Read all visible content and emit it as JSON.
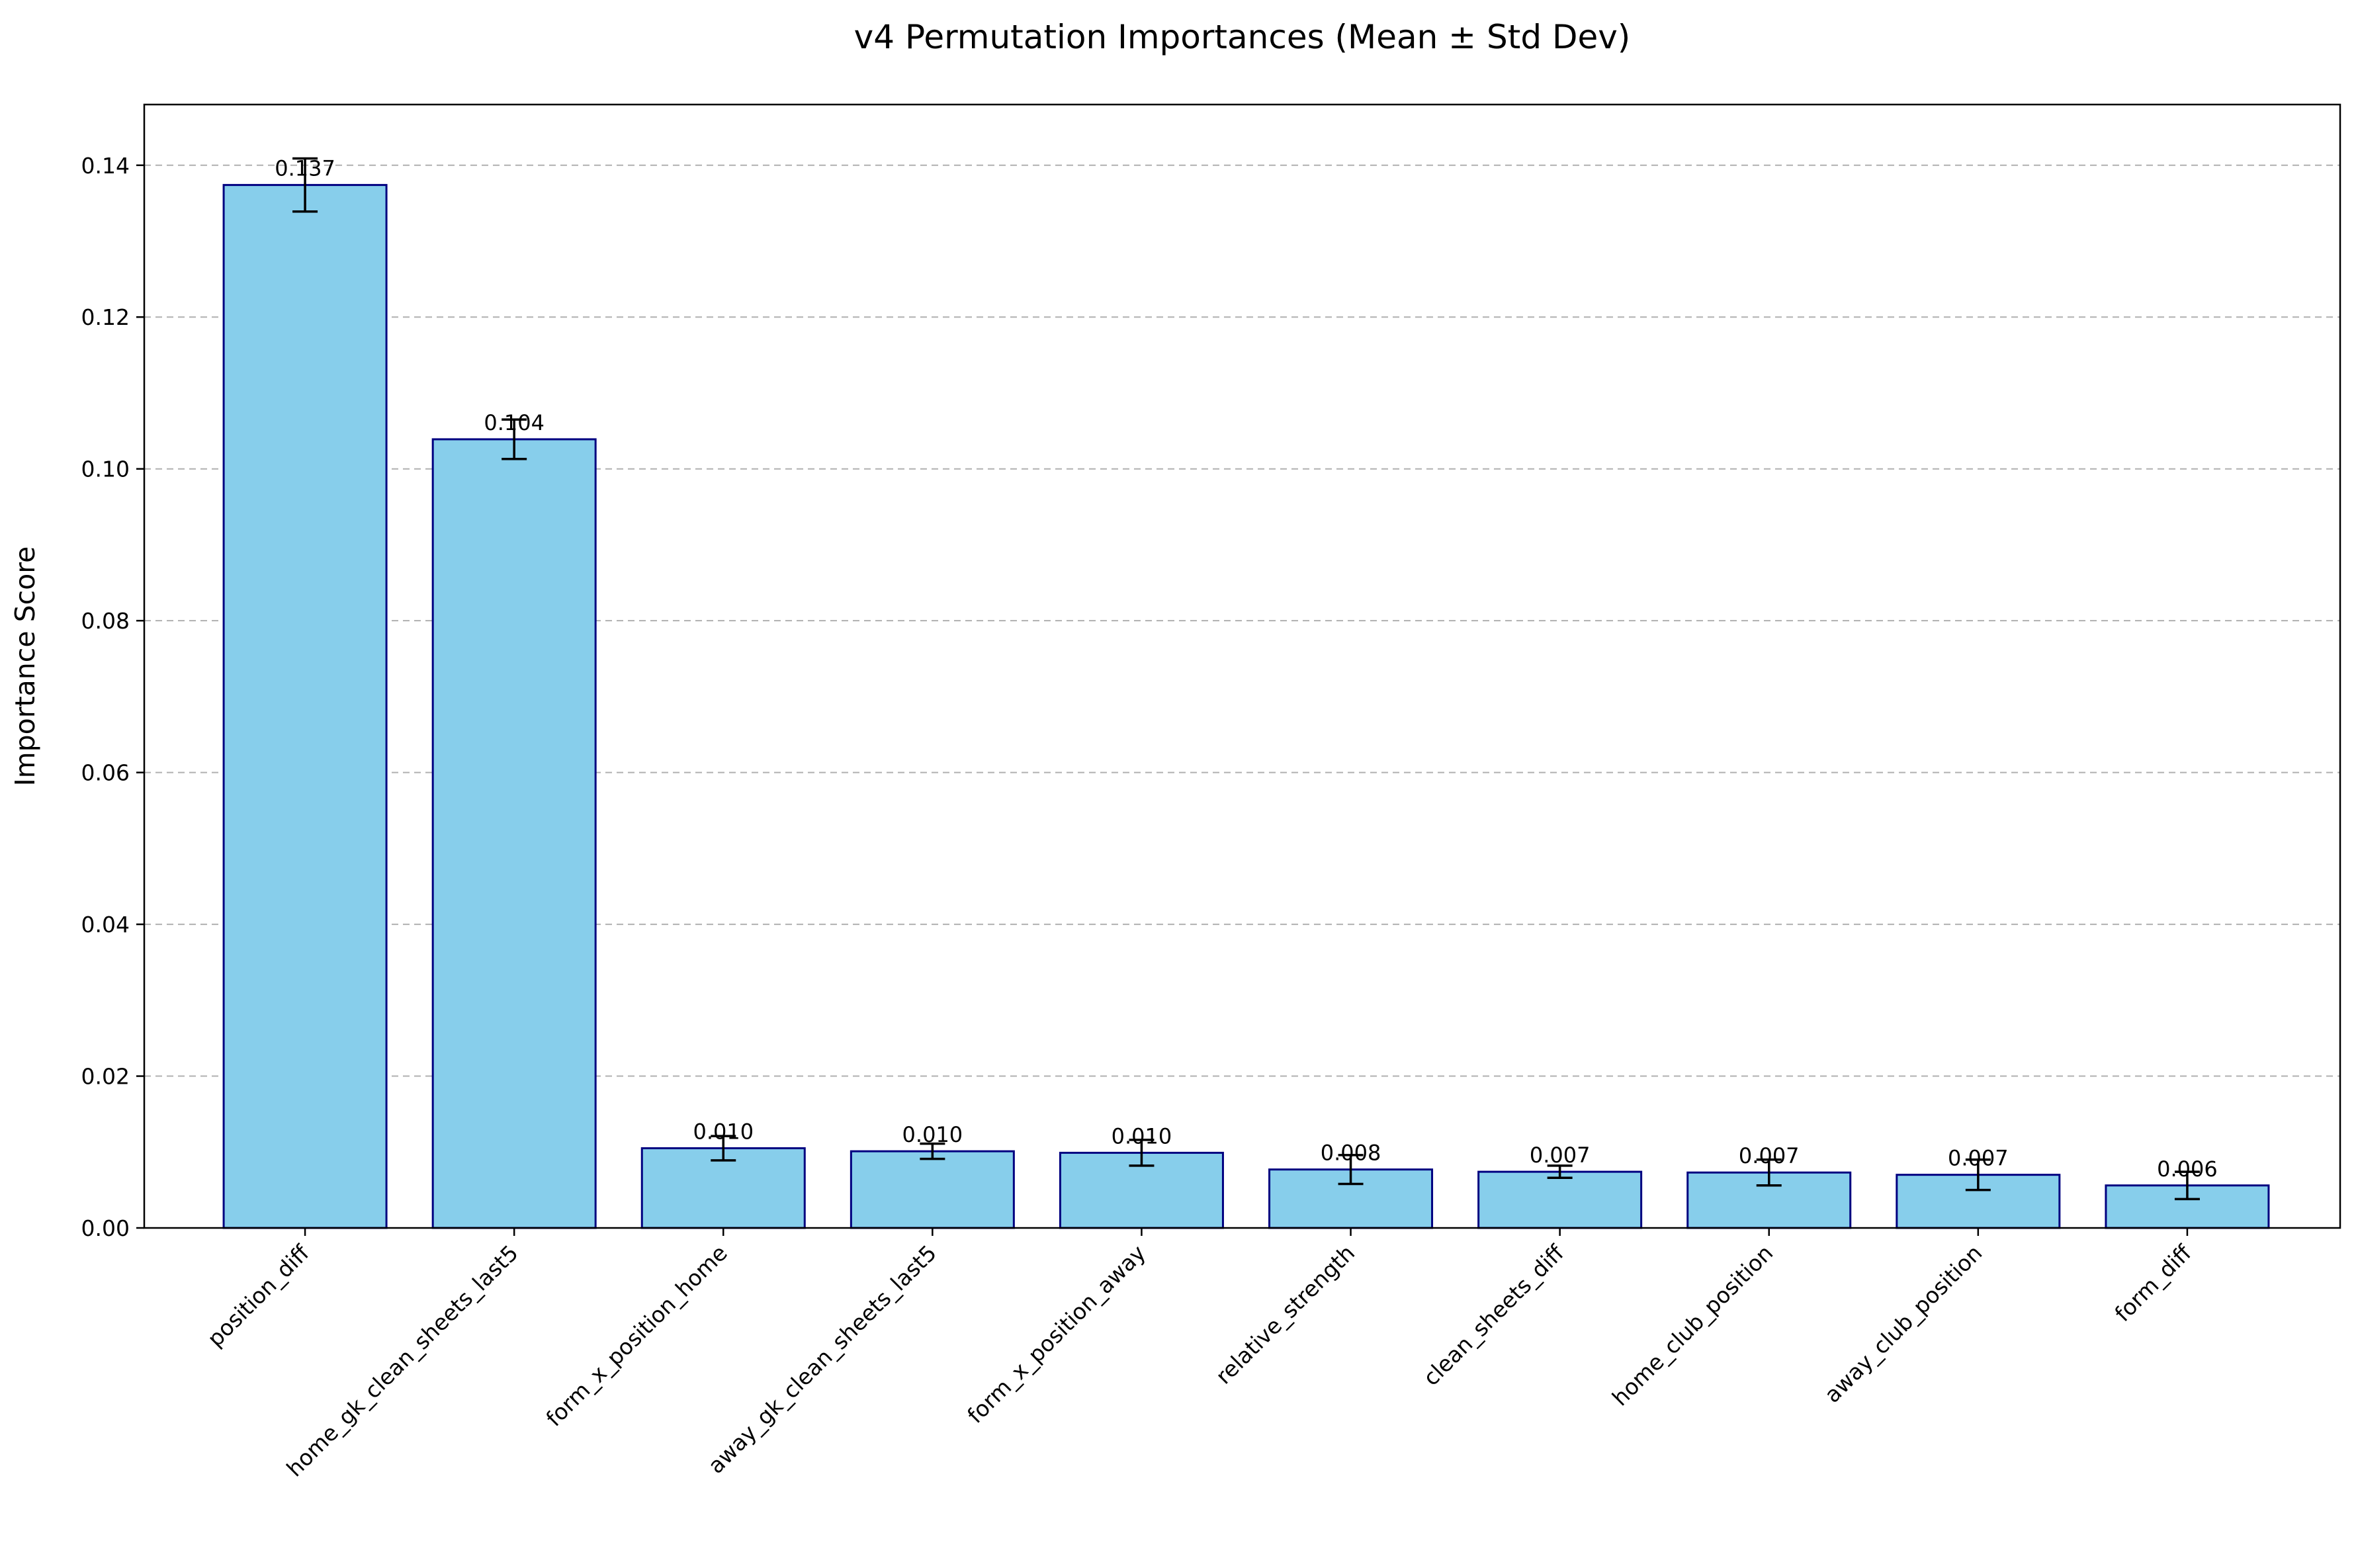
{
  "chart_data": {
    "type": "bar",
    "title": "v4 Permutation Importances (Mean ± Std Dev)",
    "xlabel": "",
    "ylabel": "Importance Score",
    "categories": [
      "position_diff",
      "home_gk_clean_sheets_last5",
      "form_x_position_home",
      "away_gk_clean_sheets_last5",
      "form_x_position_away",
      "relative_strength",
      "clean_sheets_diff",
      "home_club_position",
      "away_club_position",
      "form_diff"
    ],
    "values": [
      0.1374,
      0.1039,
      0.0105,
      0.0101,
      0.0099,
      0.0077,
      0.0074,
      0.0073,
      0.007,
      0.0056
    ],
    "errors": [
      0.0035,
      0.0026,
      0.0016,
      0.001,
      0.0017,
      0.0019,
      0.0008,
      0.0017,
      0.002,
      0.0018
    ],
    "value_labels": [
      "0.137",
      "0.104",
      "0.010",
      "0.010",
      "0.010",
      "0.008",
      "0.007",
      "0.007",
      "0.007",
      "0.006"
    ],
    "ylim": [
      0,
      0.148
    ],
    "yticks": [
      0.0,
      0.02,
      0.04,
      0.06,
      0.08,
      0.1,
      0.12,
      0.14
    ],
    "ytick_labels": [
      "0.00",
      "0.02",
      "0.04",
      "0.06",
      "0.08",
      "0.10",
      "0.12",
      "0.14"
    ],
    "grid": "y-dashed",
    "colors": {
      "bar_fill": "#87CEEB",
      "bar_edge": "#000080",
      "error_bar": "#000000",
      "grid": "#b0b0b0"
    }
  }
}
